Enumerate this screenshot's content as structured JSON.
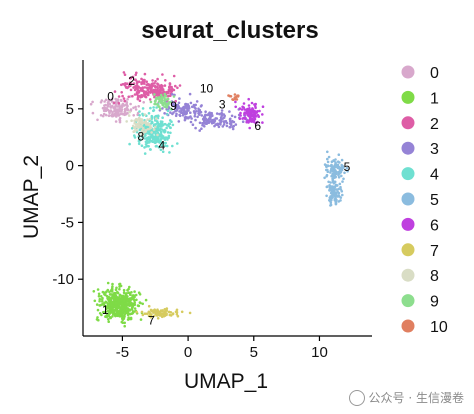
{
  "chart_data": {
    "type": "scatter",
    "title": "seurat_clusters",
    "xlabel": "UMAP_1",
    "ylabel": "UMAP_2",
    "xlim": [
      -8,
      14
    ],
    "ylim": [
      -15,
      9.3
    ],
    "xticks": [
      -5,
      0,
      5,
      10
    ],
    "yticks": [
      5,
      0,
      -5,
      -10
    ],
    "xtick_labels": [
      "-5",
      "0",
      "5",
      "10"
    ],
    "ytick_labels": [
      "5",
      "0",
      "-5",
      "-10"
    ],
    "grid": false,
    "legend_position": "right",
    "legend": [
      "0",
      "1",
      "2",
      "3",
      "4",
      "5",
      "6",
      "7",
      "8",
      "9",
      "10"
    ],
    "colors": [
      "#D8A8CC",
      "#7FDB47",
      "#DE5DA6",
      "#9583D6",
      "#6FE0D1",
      "#8BBCDF",
      "#BF40DF",
      "#D6CB5F",
      "#D9DDC5",
      "#8DDE8E",
      "#E07F60"
    ],
    "clusters": [
      {
        "name": "0",
        "label": "0",
        "label_at": [
          -5.9,
          6.0
        ],
        "n": 160,
        "blobs": [
          {
            "cx": -5.5,
            "cy": 5.0,
            "sx": 0.8,
            "sy": 0.5
          }
        ]
      },
      {
        "name": "1",
        "label": "1",
        "label_at": [
          -6.3,
          -12.8
        ],
        "n": 480,
        "blobs": [
          {
            "cx": -5.3,
            "cy": -12.2,
            "sx": 0.8,
            "sy": 0.75
          }
        ]
      },
      {
        "name": "2",
        "label": "2",
        "label_at": [
          -4.3,
          7.4
        ],
        "n": 260,
        "blobs": [
          {
            "cx": -3.5,
            "cy": 6.8,
            "sx": 1.1,
            "sy": 0.6
          },
          {
            "cx": -2.2,
            "cy": 6.5,
            "sx": 0.6,
            "sy": 0.4
          }
        ]
      },
      {
        "name": "3",
        "label": "3",
        "label_at": [
          2.6,
          5.3
        ],
        "n": 240,
        "blobs": [
          {
            "cx": -0.3,
            "cy": 4.9,
            "sx": 1.0,
            "sy": 0.55
          },
          {
            "cx": 2.2,
            "cy": 4.0,
            "sx": 1.1,
            "sy": 0.4
          }
        ]
      },
      {
        "name": "4",
        "label": "4",
        "label_at": [
          -2.0,
          1.7
        ],
        "n": 300,
        "blobs": [
          {
            "cx": -2.6,
            "cy": 3.0,
            "sx": 0.75,
            "sy": 0.95
          }
        ]
      },
      {
        "name": "5",
        "label": "5",
        "label_at": [
          12.1,
          -0.2
        ],
        "n": 200,
        "blobs": [
          {
            "cx": 11.3,
            "cy": -0.4,
            "sx": 0.5,
            "sy": 0.55
          },
          {
            "cx": 11.1,
            "cy": -2.3,
            "sx": 0.3,
            "sy": 0.6
          }
        ]
      },
      {
        "name": "6",
        "label": "6",
        "label_at": [
          5.3,
          3.4
        ],
        "n": 110,
        "blobs": [
          {
            "cx": 4.7,
            "cy": 4.6,
            "sx": 0.45,
            "sy": 0.5
          }
        ]
      },
      {
        "name": "7",
        "label": "7",
        "label_at": [
          -2.8,
          -13.7
        ],
        "n": 80,
        "blobs": [
          {
            "cx": -2.1,
            "cy": -13.0,
            "sx": 0.8,
            "sy": 0.2
          }
        ]
      },
      {
        "name": "8",
        "label": "8",
        "label_at": [
          -3.6,
          2.5
        ],
        "n": 70,
        "blobs": [
          {
            "cx": -3.5,
            "cy": 3.6,
            "sx": 0.5,
            "sy": 0.5
          }
        ]
      },
      {
        "name": "9",
        "label": "9",
        "label_at": [
          -1.1,
          5.2
        ],
        "n": 50,
        "blobs": [
          {
            "cx": -2.0,
            "cy": 5.6,
            "sx": 0.5,
            "sy": 0.4
          }
        ]
      },
      {
        "name": "10",
        "label": "10",
        "label_at": [
          1.4,
          6.7
        ],
        "n": 14,
        "blobs": [
          {
            "cx": 3.6,
            "cy": 6.0,
            "sx": 0.25,
            "sy": 0.2
          }
        ]
      }
    ]
  },
  "watermark": "公众号 · 生信漫卷"
}
